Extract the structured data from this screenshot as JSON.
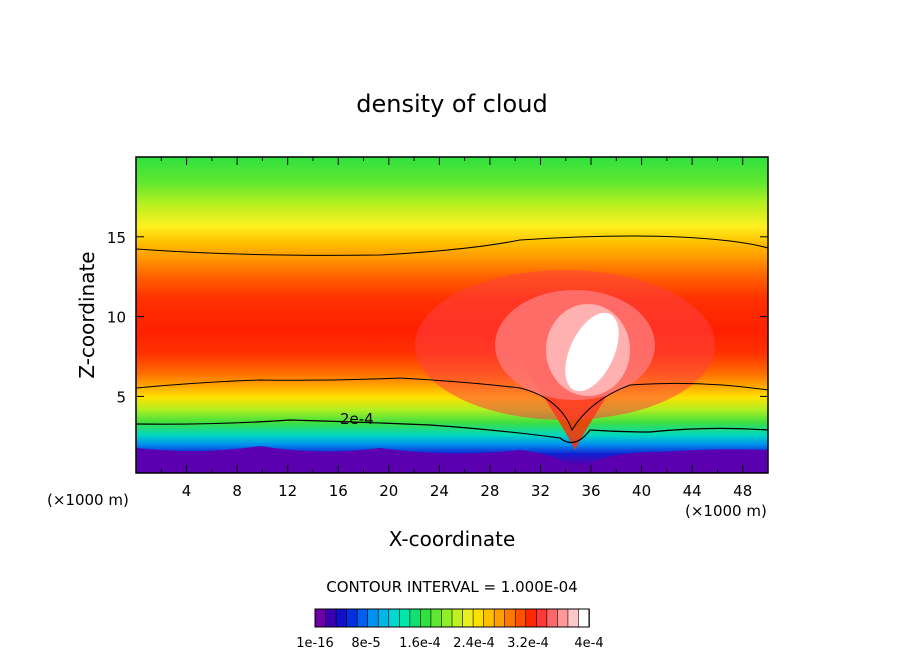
{
  "chart_data": {
    "type": "heatmap",
    "title": "density of cloud",
    "xlabel": "X-coordinate",
    "ylabel": "Z-coordinate",
    "x_unit_left": "(×1000 m)",
    "x_unit_right": "(×1000 m)",
    "xlim": [
      0,
      50
    ],
    "ylim": [
      0.2,
      20
    ],
    "x_ticks": [
      4,
      8,
      12,
      16,
      20,
      24,
      28,
      32,
      36,
      40,
      44,
      48
    ],
    "x_tick_labels": [
      "4",
      "8",
      "12",
      "16",
      "20",
      "24",
      "28",
      "32",
      "36",
      "40",
      "44",
      "48"
    ],
    "y_ticks": [
      5,
      10,
      15
    ],
    "y_tick_labels": [
      "5",
      "10",
      "15"
    ],
    "contour_interval_text": "CONTOUR INTERVAL = 1.000E-04",
    "contour_label": "2e-4",
    "colorbar_tick_labels": [
      "1e-16",
      "8e-5",
      "1.6e-4",
      "2.4e-4",
      "3.2e-4",
      "4e-4"
    ],
    "colors": {
      "levels": [
        "#6a00a8",
        "#3a00b0",
        "#1010c8",
        "#0030e0",
        "#0060f0",
        "#0090f0",
        "#00b8e8",
        "#00d8d0",
        "#00e8a8",
        "#10e070",
        "#30e040",
        "#60e830",
        "#90f028",
        "#c0f020",
        "#e8f020",
        "#ffe000",
        "#ffc000",
        "#ffa000",
        "#ff7800",
        "#ff5000",
        "#ff2800",
        "#ff3838",
        "#ff6868",
        "#ff9898",
        "#ffc8c8",
        "#ffffff"
      ]
    }
  }
}
